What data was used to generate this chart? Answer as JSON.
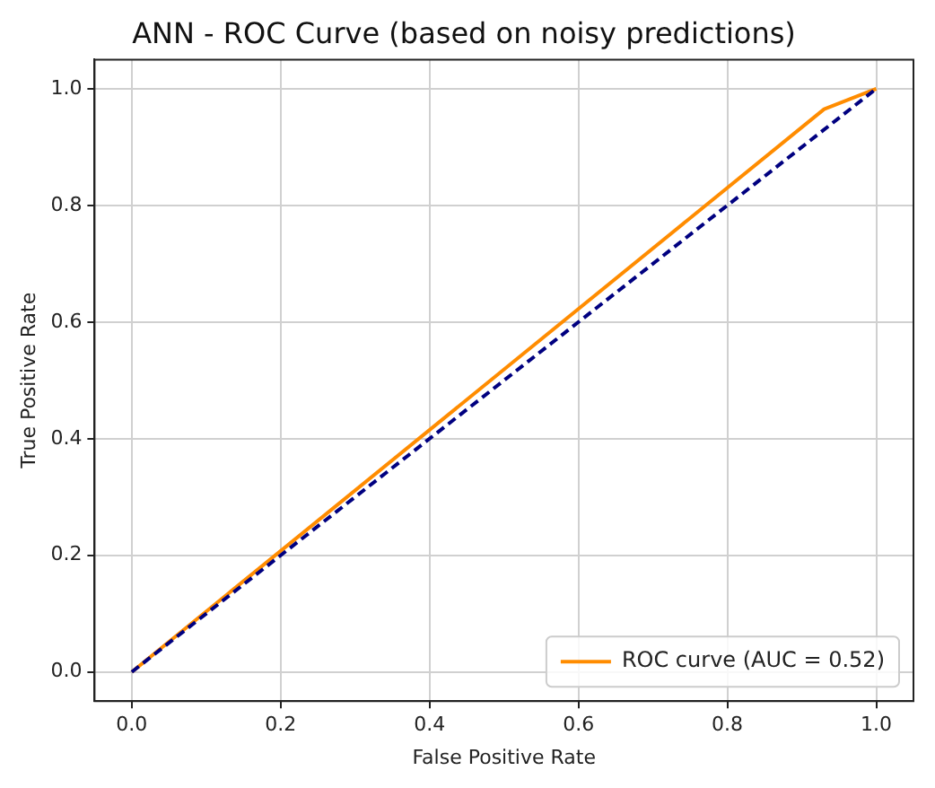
{
  "chart_data": {
    "type": "line",
    "title": "ANN - ROC Curve (based on noisy predictions)",
    "xlabel": "False Positive Rate",
    "ylabel": "True Positive Rate",
    "xlim": [
      -0.05,
      1.05
    ],
    "ylim": [
      -0.05,
      1.05
    ],
    "xticks": [
      {
        "value": 0,
        "label": "0.0"
      },
      0.2,
      0.4,
      0.6,
      0.8,
      {
        "value": 1,
        "label": "1.0"
      }
    ],
    "yticks": [
      {
        "value": 0,
        "label": "0.0"
      },
      0.2,
      0.4,
      0.6,
      0.8,
      {
        "value": 1,
        "label": "1.0"
      }
    ],
    "grid": true,
    "legend": "bottom right",
    "marker": "none",
    "series": [
      {
        "name": "ROC curve (AUC = 0.52)",
        "color": "#ff8c00",
        "x": [
          0,
          0.93,
          1
        ],
        "values": [
          0,
          0.965,
          1
        ],
        "line_style": "solid"
      },
      {
        "color": "#000080",
        "x": [
          0,
          1
        ],
        "values": [
          0,
          1
        ],
        "line_style": "dashed"
      }
    ]
  }
}
